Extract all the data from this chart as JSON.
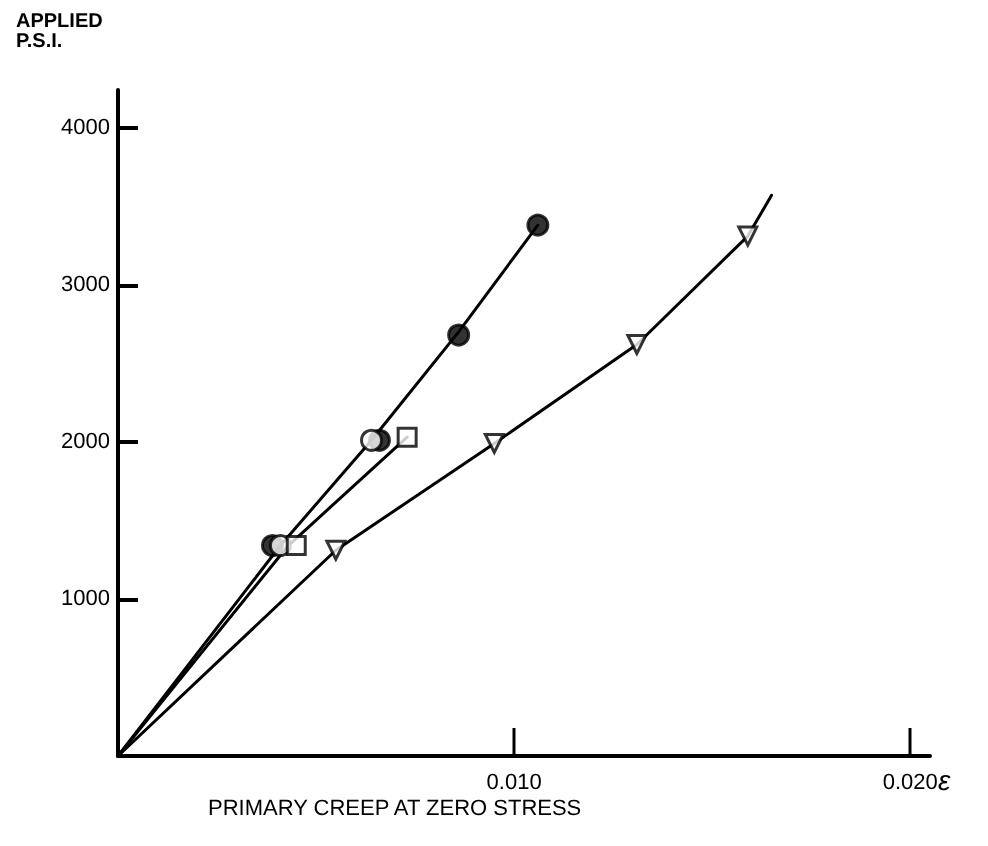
{
  "chart_data": {
    "type": "scatter",
    "xlabel": "PRIMARY CREEP AT ZERO STRESS",
    "ylabel": "APPLIED\nP.S.I.",
    "annotations": [
      "ε"
    ],
    "xlim": [
      0,
      0.0205
    ],
    "xticks": [
      {
        "value": 0.01,
        "label": "0.010"
      },
      {
        "value": 0.02,
        "label": "0.020"
      }
    ],
    "ylim": [
      0,
      4240
    ],
    "yticks": [
      1000,
      2000,
      3000,
      4000
    ],
    "grid": false,
    "series": [
      {
        "type": "line",
        "marker": "none",
        "color": "#000000",
        "x": [
          0,
          0.0041,
          0.0064,
          0.0086,
          0.0106
        ],
        "values": [
          0,
          1340,
          2010,
          2700,
          3380
        ]
      },
      {
        "type": "line",
        "marker": "none",
        "color": "#000000",
        "x": [
          0,
          0.0043,
          0.0073
        ],
        "values": [
          0,
          1340,
          2030
        ]
      },
      {
        "type": "line",
        "marker": "none",
        "color": "#000000",
        "x": [
          0,
          0.0055,
          0.0095,
          0.0131,
          0.0159,
          0.0165
        ],
        "values": [
          0,
          1310,
          1990,
          2620,
          3310,
          3570
        ]
      },
      {
        "marker": "circle",
        "color": "#000000",
        "x": [
          0.0039,
          0.0066,
          0.0086,
          0.0106
        ],
        "values": [
          1340,
          2010,
          2680,
          3380
        ]
      },
      {
        "marker": "circle",
        "color": "#ffffff",
        "x": [
          0.0041,
          0.0064
        ],
        "values": [
          1340,
          2010
        ]
      },
      {
        "marker": "square",
        "color": "#ffffff",
        "x": [
          0.0045,
          0.0073
        ],
        "values": [
          1340,
          2030
        ]
      },
      {
        "marker": "triangle",
        "color": "#ffffff",
        "x": [
          0.0055,
          0.0095,
          0.0131,
          0.0159
        ],
        "values": [
          1310,
          1990,
          2620,
          3310
        ]
      }
    ]
  }
}
